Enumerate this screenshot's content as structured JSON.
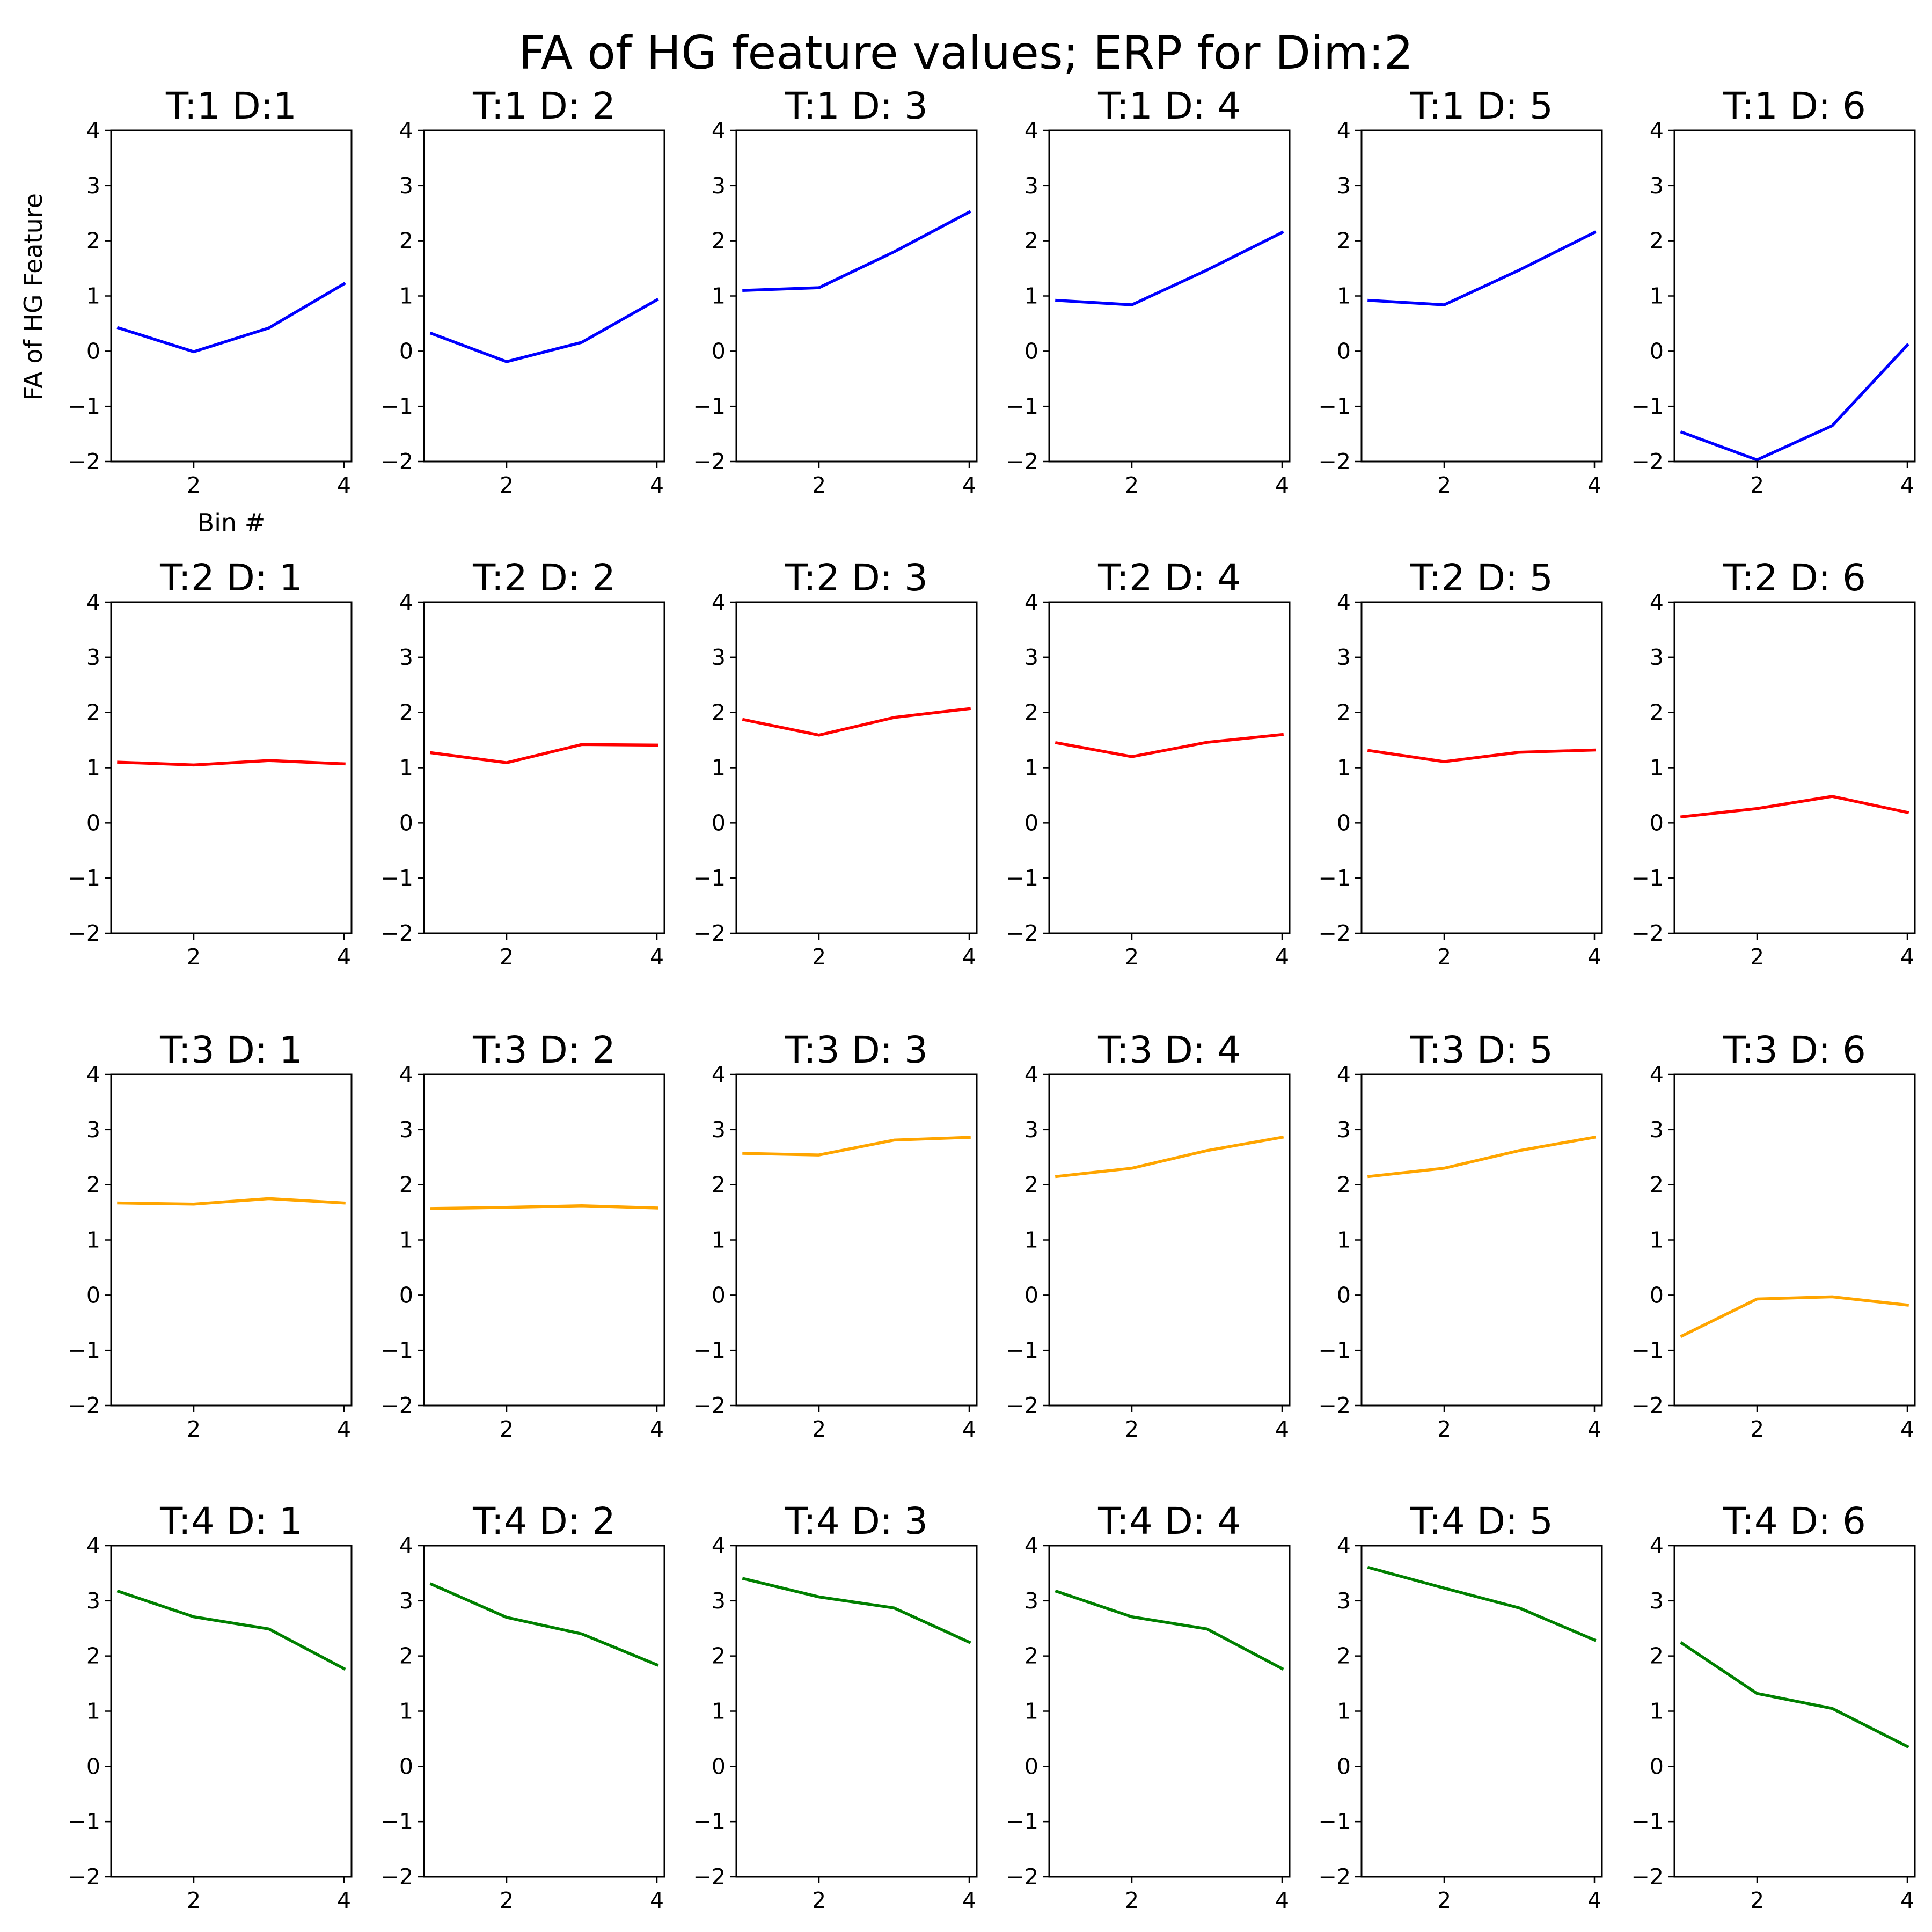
{
  "figure": {
    "title": "FA of HG feature values; ERP for Dim:2"
  },
  "chart_data": {
    "type": "line",
    "title": "FA of HG feature values; ERP for Dim:2",
    "layout": {
      "rows": 4,
      "cols": 6
    },
    "xlim": [
      0.9,
      4.1
    ],
    "ylim": [
      -2,
      4
    ],
    "xticks": [
      2,
      4
    ],
    "yticks": [
      -2,
      -1,
      0,
      1,
      2,
      3,
      4
    ],
    "xlabel": "Bin #",
    "ylabel": "FA of HG Feature",
    "grid": false,
    "row_colors": [
      "#0000ff",
      "#ff0000",
      "#ffa500",
      "#008000"
    ],
    "panels": [
      {
        "title": "T:1  D:1",
        "x": [
          1,
          2,
          3,
          4
        ],
        "y": [
          0.42,
          -0.01,
          0.42,
          1.22
        ]
      },
      {
        "title": "T:1  D: 2",
        "x": [
          1,
          2,
          3,
          4
        ],
        "y": [
          0.32,
          -0.19,
          0.16,
          0.93
        ]
      },
      {
        "title": "T:1  D: 3",
        "x": [
          1,
          2,
          3,
          4
        ],
        "y": [
          1.1,
          1.15,
          1.8,
          2.52
        ]
      },
      {
        "title": "T:1  D: 4",
        "x": [
          1,
          2,
          3,
          4
        ],
        "y": [
          0.92,
          0.84,
          1.47,
          2.15
        ]
      },
      {
        "title": "T:1  D: 5",
        "x": [
          1,
          2,
          3,
          4
        ],
        "y": [
          0.92,
          0.84,
          1.47,
          2.15
        ]
      },
      {
        "title": "T:1  D: 6",
        "x": [
          1,
          2,
          3,
          4
        ],
        "y": [
          -1.47,
          -1.97,
          -1.35,
          0.11
        ]
      },
      {
        "title": "T:2  D: 1",
        "x": [
          1,
          2,
          3,
          4
        ],
        "y": [
          1.1,
          1.05,
          1.13,
          1.07
        ]
      },
      {
        "title": "T:2  D: 2",
        "x": [
          1,
          2,
          3,
          4
        ],
        "y": [
          1.27,
          1.09,
          1.42,
          1.41
        ]
      },
      {
        "title": "T:2  D: 3",
        "x": [
          1,
          2,
          3,
          4
        ],
        "y": [
          1.87,
          1.59,
          1.91,
          2.07
        ]
      },
      {
        "title": "T:2  D: 4",
        "x": [
          1,
          2,
          3,
          4
        ],
        "y": [
          1.45,
          1.2,
          1.46,
          1.6
        ]
      },
      {
        "title": "T:2  D: 5",
        "x": [
          1,
          2,
          3,
          4
        ],
        "y": [
          1.31,
          1.11,
          1.28,
          1.32
        ]
      },
      {
        "title": "T:2  D: 6",
        "x": [
          1,
          2,
          3,
          4
        ],
        "y": [
          0.11,
          0.26,
          0.48,
          0.19
        ]
      },
      {
        "title": "T:3  D: 1",
        "x": [
          1,
          2,
          3,
          4
        ],
        "y": [
          1.67,
          1.65,
          1.75,
          1.67
        ]
      },
      {
        "title": "T:3  D: 2",
        "x": [
          1,
          2,
          3,
          4
        ],
        "y": [
          1.57,
          1.59,
          1.62,
          1.58
        ]
      },
      {
        "title": "T:3  D: 3",
        "x": [
          1,
          2,
          3,
          4
        ],
        "y": [
          2.57,
          2.54,
          2.81,
          2.86
        ]
      },
      {
        "title": "T:3  D: 4",
        "x": [
          1,
          2,
          3,
          4
        ],
        "y": [
          2.15,
          2.3,
          2.62,
          2.86
        ]
      },
      {
        "title": "T:3  D: 5",
        "x": [
          1,
          2,
          3,
          4
        ],
        "y": [
          2.15,
          2.3,
          2.62,
          2.86
        ]
      },
      {
        "title": "T:3  D: 6",
        "x": [
          1,
          2,
          3,
          4
        ],
        "y": [
          -0.74,
          -0.07,
          -0.03,
          -0.18
        ]
      },
      {
        "title": "T:4  D: 1",
        "x": [
          1,
          2,
          3,
          4
        ],
        "y": [
          3.17,
          2.71,
          2.49,
          1.77
        ]
      },
      {
        "title": "T:4  D: 2",
        "x": [
          1,
          2,
          3,
          4
        ],
        "y": [
          3.3,
          2.7,
          2.4,
          1.84
        ]
      },
      {
        "title": "T:4  D: 3",
        "x": [
          1,
          2,
          3,
          4
        ],
        "y": [
          3.4,
          3.07,
          2.87,
          2.25
        ]
      },
      {
        "title": "T:4  D: 4",
        "x": [
          1,
          2,
          3,
          4
        ],
        "y": [
          3.17,
          2.71,
          2.49,
          1.77
        ]
      },
      {
        "title": "T:4  D: 5",
        "x": [
          1,
          2,
          3,
          4
        ],
        "y": [
          3.6,
          3.23,
          2.87,
          2.29
        ]
      },
      {
        "title": "T:4  D: 6",
        "x": [
          1,
          2,
          3,
          4
        ],
        "y": [
          2.23,
          1.32,
          1.05,
          0.36
        ]
      }
    ]
  }
}
